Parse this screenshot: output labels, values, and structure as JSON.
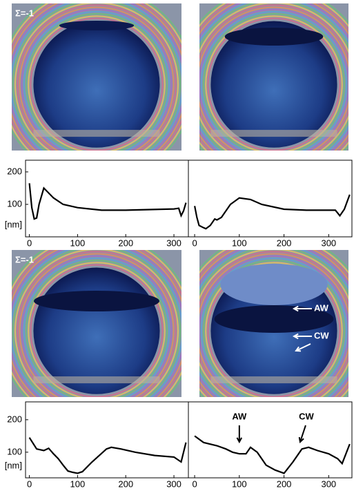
{
  "image_annotations": [
    "Σ=-1",
    "Σ=-1",
    "AW",
    "CW"
  ],
  "chart_data": [
    {
      "type": "line",
      "ylabel": "[nm]",
      "xlim": [
        -8,
        330
      ],
      "ylim": [
        0,
        236
      ],
      "xticks": [
        0,
        100,
        200,
        300
      ],
      "yticks": [
        100,
        200
      ],
      "x": [
        0,
        5,
        10,
        15,
        20,
        30,
        40,
        50,
        70,
        100,
        150,
        200,
        250,
        300,
        310,
        315,
        320,
        325
      ],
      "values": [
        165,
        90,
        55,
        58,
        100,
        150,
        135,
        120,
        100,
        90,
        82,
        82,
        84,
        86,
        88,
        65,
        80,
        105
      ]
    },
    {
      "type": "line",
      "xlim": [
        -14,
        352
      ],
      "ylim": [
        0,
        236
      ],
      "xticks": [
        0,
        100,
        200,
        300
      ],
      "x": [
        0,
        5,
        10,
        20,
        25,
        35,
        45,
        50,
        60,
        70,
        80,
        100,
        125,
        150,
        200,
        250,
        300,
        315,
        325,
        335,
        347
      ],
      "values": [
        95,
        60,
        35,
        28,
        25,
        35,
        55,
        52,
        60,
        80,
        100,
        120,
        115,
        100,
        85,
        82,
        82,
        82,
        65,
        85,
        130
      ]
    },
    {
      "type": "line",
      "ylabel": "[nm]",
      "xlim": [
        -8,
        330
      ],
      "ylim": [
        21,
        255
      ],
      "xticks": [
        0,
        100,
        200,
        300
      ],
      "yticks": [
        100,
        200
      ],
      "x": [
        0,
        15,
        30,
        40,
        50,
        60,
        70,
        80,
        90,
        100,
        110,
        130,
        160,
        170,
        190,
        220,
        260,
        300,
        315,
        325
      ],
      "values": [
        145,
        110,
        105,
        112,
        95,
        80,
        60,
        42,
        38,
        35,
        40,
        70,
        110,
        115,
        110,
        100,
        90,
        85,
        70,
        130
      ]
    },
    {
      "type": "line",
      "xlim": [
        -14,
        352
      ],
      "ylim": [
        21,
        255
      ],
      "xticks": [
        0,
        100,
        200,
        300
      ],
      "x": [
        0,
        20,
        50,
        70,
        85,
        100,
        115,
        125,
        140,
        160,
        180,
        200,
        220,
        240,
        255,
        275,
        300,
        320,
        330,
        347
      ],
      "values": [
        150,
        130,
        120,
        110,
        100,
        95,
        95,
        115,
        100,
        60,
        45,
        35,
        70,
        110,
        115,
        105,
        95,
        80,
        65,
        125
      ],
      "annotations": [
        {
          "text": "AW",
          "x": 100
        },
        {
          "text": "CW",
          "x": 250
        }
      ]
    }
  ]
}
